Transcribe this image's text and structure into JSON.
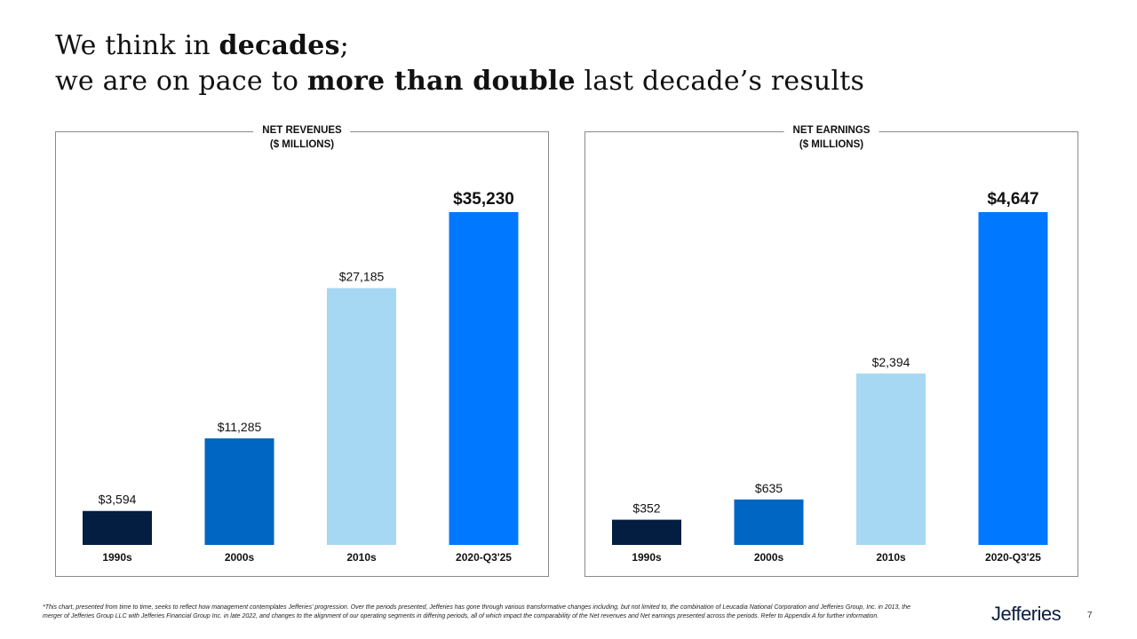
{
  "slide": {
    "title_part1": "We think in ",
    "title_bold1": "decades",
    "title_part2": ";",
    "title_part3": "we are on pace to ",
    "title_bold2": "more than double",
    "title_part4": " last decade’s results",
    "footnote": "*This chart, presented from time to time, seeks to reflect how management contemplates Jefferies’ progression.  Over the periods presented, Jefferies has gone through various transformative changes including, but not limited to, the combination of Leucadia National Corporation and Jefferies Group, Inc. in 2013, the merger of Jefferies Group LLC with Jefferies Financial Group Inc. in late 2022, and changes to the alignment of our operating segments in differing periods, all of which impact the comparability of the Net revenues and Net earnings presented across the periods. Refer to Appendix A for further information.",
    "logo": "Jefferies",
    "page_number": "7"
  },
  "chart_data": [
    {
      "type": "bar",
      "title": "NET REVENUES",
      "subtitle": "($ MILLIONS)",
      "categories": [
        "1990s",
        "2000s",
        "2010s",
        "2020-Q3'25"
      ],
      "values": [
        3594,
        11285,
        27185,
        35230
      ],
      "labels": [
        "$3,594",
        "$11,285",
        "$27,185",
        "$35,230"
      ],
      "bar_colors": [
        "#031e41",
        "#0066c4",
        "#a7d8f3",
        "#0078ff"
      ],
      "highlight_last": true,
      "ylim": [
        0,
        35230
      ],
      "xlabel": "",
      "ylabel": ""
    },
    {
      "type": "bar",
      "title": "NET EARNINGS",
      "subtitle": "($ MILLIONS)",
      "categories": [
        "1990s",
        "2000s",
        "2010s",
        "2020-Q3'25"
      ],
      "values": [
        352,
        635,
        2394,
        4647
      ],
      "labels": [
        "$352",
        "$635",
        "$2,394",
        "$4,647"
      ],
      "bar_colors": [
        "#031e41",
        "#0066c4",
        "#a7d8f3",
        "#0078ff"
      ],
      "highlight_last": true,
      "ylim": [
        0,
        4647
      ],
      "xlabel": "",
      "ylabel": ""
    }
  ]
}
